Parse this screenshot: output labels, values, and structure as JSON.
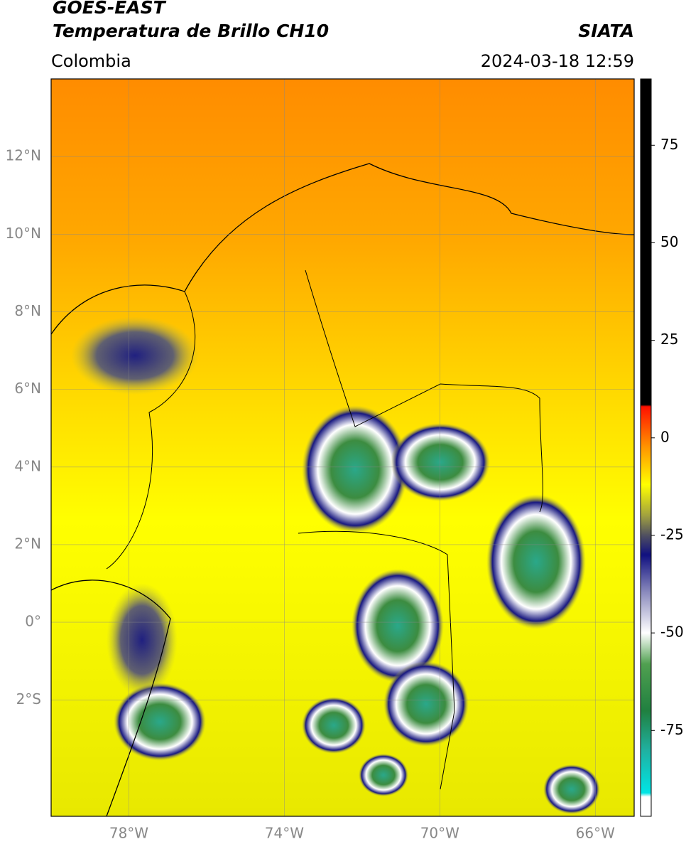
{
  "map": {
    "title": "GOES-EAST",
    "subtitle": "Temperatura de Brillo CH10",
    "source": "SIATA",
    "region": "Colombia",
    "datetime": "2024-03-18 12:59",
    "xlim": [
      -80,
      -65
    ],
    "ylim": [
      -5,
      14
    ],
    "xticks": [
      {
        "value": -78,
        "label": "78°W"
      },
      {
        "value": -74,
        "label": "74°W"
      },
      {
        "value": -70,
        "label": "70°W"
      },
      {
        "value": -66,
        "label": "66°W"
      }
    ],
    "yticks": [
      {
        "value": -2,
        "label": "2°S"
      },
      {
        "value": 0,
        "label": "0°"
      },
      {
        "value": 2,
        "label": "2°N"
      },
      {
        "value": 4,
        "label": "4°N"
      },
      {
        "value": 6,
        "label": "6°N"
      },
      {
        "value": 8,
        "label": "8°N"
      },
      {
        "value": 10,
        "label": "10°N"
      },
      {
        "value": 12,
        "label": "12°N"
      }
    ],
    "grid": true,
    "colorbar": {
      "lim": [
        -97,
        92
      ],
      "ticks": [
        -75,
        -50,
        -25,
        0,
        25,
        50,
        75
      ],
      "stops": [
        {
          "value": -97,
          "color": "#ffffff"
        },
        {
          "value": -92,
          "color": "#ffffff"
        },
        {
          "value": -91,
          "color": "#00e5e5"
        },
        {
          "value": -80,
          "color": "#20b0a0"
        },
        {
          "value": -70,
          "color": "#208040"
        },
        {
          "value": -58,
          "color": "#50a050"
        },
        {
          "value": -50,
          "color": "#ffffff"
        },
        {
          "value": -40,
          "color": "#9090c0"
        },
        {
          "value": -30,
          "color": "#101080"
        },
        {
          "value": -25,
          "color": "#505060"
        },
        {
          "value": -20,
          "color": "#a0a040"
        },
        {
          "value": -12,
          "color": "#ffff00"
        },
        {
          "value": -2,
          "color": "#ff9000"
        },
        {
          "value": 8,
          "color": "#ff1000"
        },
        {
          "value": 8.5,
          "color": "#000000"
        },
        {
          "value": 92,
          "color": "#000000"
        }
      ]
    }
  }
}
